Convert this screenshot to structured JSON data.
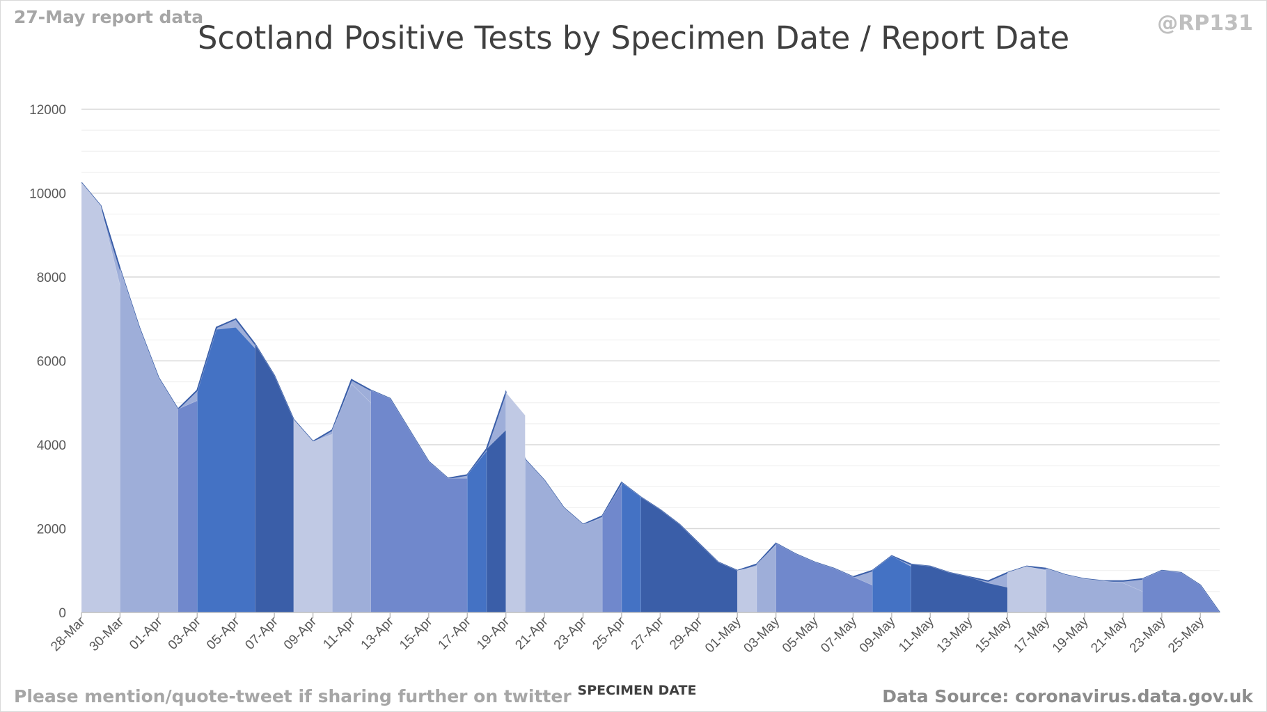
{
  "header": {
    "report_label": "27-May report data",
    "handle": "@RP131"
  },
  "footer": {
    "share_note": "Please mention/quote-tweet if sharing further on twitter",
    "source": "Data Source: coronavirus.data.gov.uk"
  },
  "chart_data": {
    "type": "area",
    "title": "Scotland Positive Tests by Specimen Date / Report Date",
    "xlabel": "SPECIMEN DATE",
    "ylabel": "",
    "ylim": [
      0,
      12000
    ],
    "y_ticks": [
      0,
      2000,
      4000,
      6000,
      8000,
      10000,
      12000
    ],
    "grid": true,
    "x_tick_labels": [
      "28-Mar",
      "30-Mar",
      "01-Apr",
      "03-Apr",
      "05-Apr",
      "07-Apr",
      "09-Apr",
      "11-Apr",
      "13-Apr",
      "15-Apr",
      "17-Apr",
      "19-Apr",
      "21-Apr",
      "23-Apr",
      "25-Apr",
      "27-Apr",
      "29-Apr",
      "01-May",
      "03-May",
      "05-May",
      "07-May",
      "09-May",
      "11-May",
      "13-May",
      "15-May",
      "17-May",
      "19-May",
      "21-May",
      "23-May",
      "25-May"
    ],
    "colors": [
      "#c0c9e4",
      "#9eaed9",
      "#7088cc",
      "#4472c4",
      "#3a5ea8"
    ],
    "x": [
      "28-Mar",
      "29-Mar",
      "30-Mar",
      "31-Mar",
      "01-Apr",
      "02-Apr",
      "03-Apr",
      "04-Apr",
      "05-Apr",
      "06-Apr",
      "07-Apr",
      "08-Apr",
      "09-Apr",
      "10-Apr",
      "11-Apr",
      "12-Apr",
      "13-Apr",
      "14-Apr",
      "15-Apr",
      "16-Apr",
      "17-Apr",
      "18-Apr",
      "19-Apr",
      "20-Apr",
      "21-Apr",
      "22-Apr",
      "23-Apr",
      "24-Apr",
      "25-Apr",
      "26-Apr",
      "27-Apr",
      "28-Apr",
      "29-Apr",
      "30-Apr",
      "01-May",
      "02-May",
      "03-May",
      "04-May",
      "05-May",
      "06-May",
      "07-May",
      "08-May",
      "09-May",
      "10-May",
      "11-May",
      "12-May",
      "13-May",
      "14-May",
      "15-May",
      "16-May",
      "17-May",
      "18-May",
      "19-May",
      "20-May",
      "21-May",
      "22-May",
      "23-May",
      "24-May",
      "25-May",
      "26-May"
    ],
    "cumulative_total": [
      10250,
      9700,
      8200,
      6800,
      5600,
      4850,
      5300,
      6800,
      7000,
      6400,
      5650,
      4600,
      4080,
      4350,
      5550,
      5300,
      5100,
      4350,
      3600,
      3200,
      3280,
      3900,
      5250,
      3650,
      3150,
      2500,
      2100,
      2300,
      3100,
      2750,
      2450,
      2100,
      1650,
      1200,
      1000,
      1150,
      1650,
      1400,
      1200,
      1050,
      850,
      1000,
      1350,
      1150,
      1100,
      950,
      850,
      750,
      950,
      1100,
      1050,
      900,
      800,
      750,
      750,
      800,
      1000,
      950,
      650,
      0
    ],
    "specimen_date_series": [
      {
        "x0": 0,
        "values": [
          10250,
          9700,
          7800,
          2800,
          0
        ]
      },
      {
        "x0": 2,
        "values": [
          8200,
          6800,
          5600,
          4850,
          2800,
          0
        ]
      },
      {
        "x0": 5,
        "values": [
          4850,
          5050,
          3300,
          0
        ]
      },
      {
        "x0": 6,
        "values": [
          5250,
          6750,
          6800,
          6300,
          3000,
          0
        ]
      },
      {
        "x0": 9,
        "values": [
          6400,
          5650,
          4600,
          2400,
          0
        ]
      },
      {
        "x0": 11,
        "values": [
          4600,
          4080,
          4250,
          3050,
          0
        ]
      },
      {
        "x0": 13,
        "values": [
          4350,
          5450,
          5000,
          2000,
          0
        ]
      },
      {
        "x0": 15,
        "values": [
          5300,
          5100,
          4350,
          3600,
          3200,
          3200,
          2350,
          0
        ]
      },
      {
        "x0": 20,
        "values": [
          3280,
          3850,
          4200,
          2500,
          0
        ]
      },
      {
        "x0": 21,
        "values": [
          3900,
          4350,
          3600,
          1500,
          0
        ]
      },
      {
        "x0": 22,
        "values": [
          5250,
          4700
        ]
      },
      {
        "x0": 23,
        "values": [
          3650,
          3150,
          2500,
          2100,
          2250,
          1300,
          0
        ]
      },
      {
        "x0": 27,
        "values": [
          2300,
          3050,
          1700,
          0
        ]
      },
      {
        "x0": 28,
        "values": [
          3100,
          2750,
          2400,
          1300,
          0
        ]
      },
      {
        "x0": 29,
        "values": [
          2750,
          2450,
          2100,
          1650,
          1200,
          1000,
          950,
          750,
          0
        ]
      },
      {
        "x0": 34,
        "values": [
          1000,
          1100,
          900,
          0
        ]
      },
      {
        "x0": 35,
        "values": [
          1150,
          1600,
          1350,
          0
        ]
      },
      {
        "x0": 36,
        "values": [
          1650,
          1400,
          1200,
          1050,
          850,
          650,
          0
        ]
      },
      {
        "x0": 41,
        "values": [
          1000,
          1350,
          1100,
          600,
          0
        ]
      },
      {
        "x0": 43,
        "values": [
          1150,
          1100,
          950,
          850,
          700,
          600,
          0
        ]
      },
      {
        "x0": 48,
        "values": [
          950,
          1100,
          1000,
          550,
          0
        ]
      },
      {
        "x0": 50,
        "values": [
          1050,
          900,
          800,
          750,
          700,
          500,
          0
        ]
      },
      {
        "x0": 55,
        "values": [
          800,
          1000,
          950,
          650,
          0
        ]
      }
    ]
  }
}
